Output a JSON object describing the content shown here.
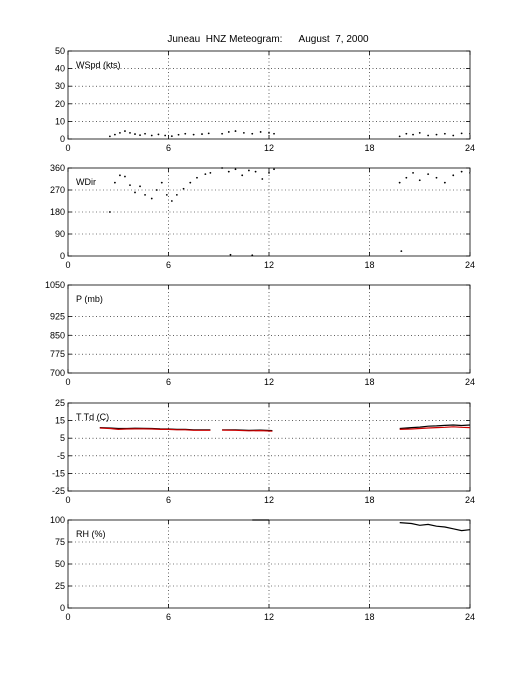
{
  "figure": {
    "title": "Juneau  HNZ Meteogram:      August  7, 2000"
  },
  "chart_data": [
    {
      "id": "wspd",
      "type": "scatter",
      "label": "WSpd (kts)",
      "xlim": [
        0,
        24
      ],
      "ylim": [
        0,
        50
      ],
      "xticks": [
        0,
        6,
        12,
        18,
        24
      ],
      "yticks": [
        0,
        10,
        20,
        30,
        40,
        50
      ],
      "grid": true,
      "series": [
        {
          "color": "#000000",
          "segments": [
            [
              [
                2.5,
                1.5
              ],
              [
                2.8,
                2.5
              ],
              [
                3.1,
                3.5
              ],
              [
                3.4,
                4.5
              ],
              [
                3.7,
                3.5
              ],
              [
                4.0,
                2.8
              ],
              [
                4.3,
                2.2
              ],
              [
                4.6,
                3.0
              ],
              [
                5.0,
                2.0
              ],
              [
                5.4,
                2.6
              ],
              [
                5.8,
                2.0
              ],
              [
                6.2,
                1.6
              ],
              [
                6.6,
                2.4
              ],
              [
                7.0,
                3.0
              ],
              [
                7.5,
                2.5
              ],
              [
                8.0,
                2.8
              ],
              [
                8.4,
                3.2
              ]
            ],
            [
              [
                9.2,
                3.0
              ],
              [
                9.6,
                4.0
              ],
              [
                10.0,
                4.5
              ],
              [
                10.5,
                3.5
              ],
              [
                11.0,
                3.0
              ],
              [
                11.5,
                4.0
              ],
              [
                12.0,
                3.5
              ],
              [
                12.3,
                3.0
              ]
            ],
            [
              [
                19.8,
                1.5
              ],
              [
                20.2,
                3.0
              ],
              [
                20.6,
                2.5
              ],
              [
                21.0,
                3.5
              ],
              [
                21.5,
                2.0
              ],
              [
                22.0,
                2.5
              ],
              [
                22.5,
                3.0
              ],
              [
                23.0,
                2.0
              ],
              [
                23.5,
                3.2
              ],
              [
                24.0,
                3.0
              ]
            ]
          ]
        }
      ]
    },
    {
      "id": "wdir",
      "type": "scatter",
      "label": "WDir",
      "xlim": [
        0,
        24
      ],
      "ylim": [
        0,
        360
      ],
      "xticks": [
        0,
        6,
        12,
        18,
        24
      ],
      "yticks": [
        0,
        90,
        180,
        270,
        360
      ],
      "grid": true,
      "series": [
        {
          "color": "#000000",
          "segments": [
            [
              [
                2.5,
                180
              ],
              [
                2.8,
                300
              ],
              [
                3.1,
                330
              ],
              [
                3.4,
                325
              ],
              [
                3.7,
                290
              ],
              [
                4.0,
                260
              ],
              [
                4.3,
                285
              ],
              [
                4.6,
                250
              ],
              [
                5.0,
                235
              ],
              [
                5.3,
                270
              ],
              [
                5.6,
                300
              ],
              [
                5.9,
                250
              ],
              [
                6.2,
                225
              ],
              [
                6.5,
                250
              ],
              [
                6.9,
                275
              ],
              [
                7.3,
                300
              ],
              [
                7.7,
                320
              ],
              [
                8.2,
                335
              ],
              [
                8.5,
                340
              ]
            ],
            [
              [
                9.2,
                360
              ],
              [
                9.6,
                345
              ],
              [
                10.0,
                355
              ],
              [
                10.4,
                330
              ],
              [
                10.8,
                350
              ],
              [
                11.2,
                345
              ],
              [
                11.6,
                315
              ],
              [
                12.0,
                340
              ],
              [
                12.3,
                355
              ]
            ],
            [
              [
                9.7,
                5
              ],
              [
                11.0,
                3
              ]
            ],
            [
              [
                19.8,
                300
              ],
              [
                20.2,
                320
              ],
              [
                20.6,
                340
              ],
              [
                21.0,
                310
              ],
              [
                21.5,
                335
              ],
              [
                22.0,
                320
              ],
              [
                22.5,
                300
              ],
              [
                23.0,
                330
              ],
              [
                23.5,
                345
              ],
              [
                24.0,
                340
              ]
            ],
            [
              [
                19.9,
                20
              ]
            ]
          ]
        }
      ]
    },
    {
      "id": "pres",
      "type": "line",
      "label": "P (mb)",
      "xlim": [
        0,
        24
      ],
      "ylim": [
        700,
        1050
      ],
      "xticks": [
        0,
        6,
        12,
        18,
        24
      ],
      "yticks": [
        700,
        775,
        850,
        925,
        1050
      ],
      "grid": true,
      "series": []
    },
    {
      "id": "temp",
      "type": "line",
      "label": "T Td (C)",
      "xlim": [
        0,
        24
      ],
      "ylim": [
        -25,
        25
      ],
      "xticks": [
        0,
        6,
        12,
        18,
        24
      ],
      "yticks": [
        -25,
        -15,
        -5,
        5,
        15,
        25
      ],
      "grid": true,
      "series": [
        {
          "color": "#000000",
          "segments": [
            [
              [
                1.9,
                11.0
              ],
              [
                2.5,
                10.8
              ],
              [
                3.0,
                10.5
              ],
              [
                3.5,
                10.5
              ],
              [
                4.0,
                10.7
              ],
              [
                4.5,
                10.6
              ],
              [
                5.0,
                10.5
              ],
              [
                5.5,
                10.3
              ],
              [
                6.0,
                10.2
              ],
              [
                6.5,
                10.0
              ],
              [
                7.0,
                10.0
              ],
              [
                7.5,
                9.8
              ],
              [
                8.0,
                9.8
              ],
              [
                8.5,
                9.8
              ]
            ],
            [
              [
                9.2,
                9.8
              ],
              [
                10.0,
                9.8
              ],
              [
                10.8,
                9.5
              ],
              [
                11.5,
                9.6
              ],
              [
                12.2,
                9.3
              ]
            ],
            [
              [
                19.8,
                10.5
              ],
              [
                20.5,
                11.0
              ],
              [
                21.0,
                11.3
              ],
              [
                21.5,
                11.8
              ],
              [
                22.0,
                12.0
              ],
              [
                22.5,
                12.3
              ],
              [
                23.0,
                12.5
              ],
              [
                23.5,
                12.2
              ],
              [
                24.0,
                12.5
              ]
            ]
          ]
        },
        {
          "color": "#cc0000",
          "segments": [
            [
              [
                1.9,
                10.8
              ],
              [
                2.5,
                10.5
              ],
              [
                3.0,
                10.0
              ],
              [
                3.5,
                10.2
              ],
              [
                4.0,
                10.3
              ],
              [
                4.5,
                10.3
              ],
              [
                5.0,
                10.2
              ],
              [
                5.5,
                10.0
              ],
              [
                6.0,
                10.0
              ],
              [
                6.5,
                9.8
              ],
              [
                7.0,
                9.8
              ],
              [
                7.5,
                9.5
              ],
              [
                8.0,
                9.5
              ],
              [
                8.5,
                9.5
              ]
            ],
            [
              [
                9.2,
                9.6
              ],
              [
                10.0,
                9.5
              ],
              [
                10.8,
                9.2
              ],
              [
                11.5,
                9.3
              ],
              [
                12.2,
                9.0
              ]
            ],
            [
              [
                19.8,
                10.0
              ],
              [
                20.5,
                10.2
              ],
              [
                21.0,
                10.5
              ],
              [
                21.5,
                10.8
              ],
              [
                22.0,
                11.0
              ],
              [
                22.5,
                11.2
              ],
              [
                23.0,
                11.5
              ],
              [
                23.5,
                11.2
              ],
              [
                24.0,
                11.0
              ]
            ]
          ]
        }
      ]
    },
    {
      "id": "rh",
      "type": "line",
      "label": "RH (%)",
      "xlim": [
        0,
        24
      ],
      "ylim": [
        0,
        100
      ],
      "xticks": [
        0,
        6,
        12,
        18,
        24
      ],
      "yticks": [
        0,
        25,
        50,
        75,
        100
      ],
      "grid": true,
      "series": [
        {
          "color": "#000000",
          "segments": [
            [
              [
                11.0,
                100
              ],
              [
                12.0,
                100
              ]
            ],
            [
              [
                19.8,
                97
              ],
              [
                20.5,
                96
              ],
              [
                21.0,
                94
              ],
              [
                21.5,
                95
              ],
              [
                22.0,
                93
              ],
              [
                22.5,
                92
              ],
              [
                23.0,
                90
              ],
              [
                23.5,
                88
              ],
              [
                24.0,
                89
              ]
            ]
          ]
        }
      ]
    }
  ]
}
